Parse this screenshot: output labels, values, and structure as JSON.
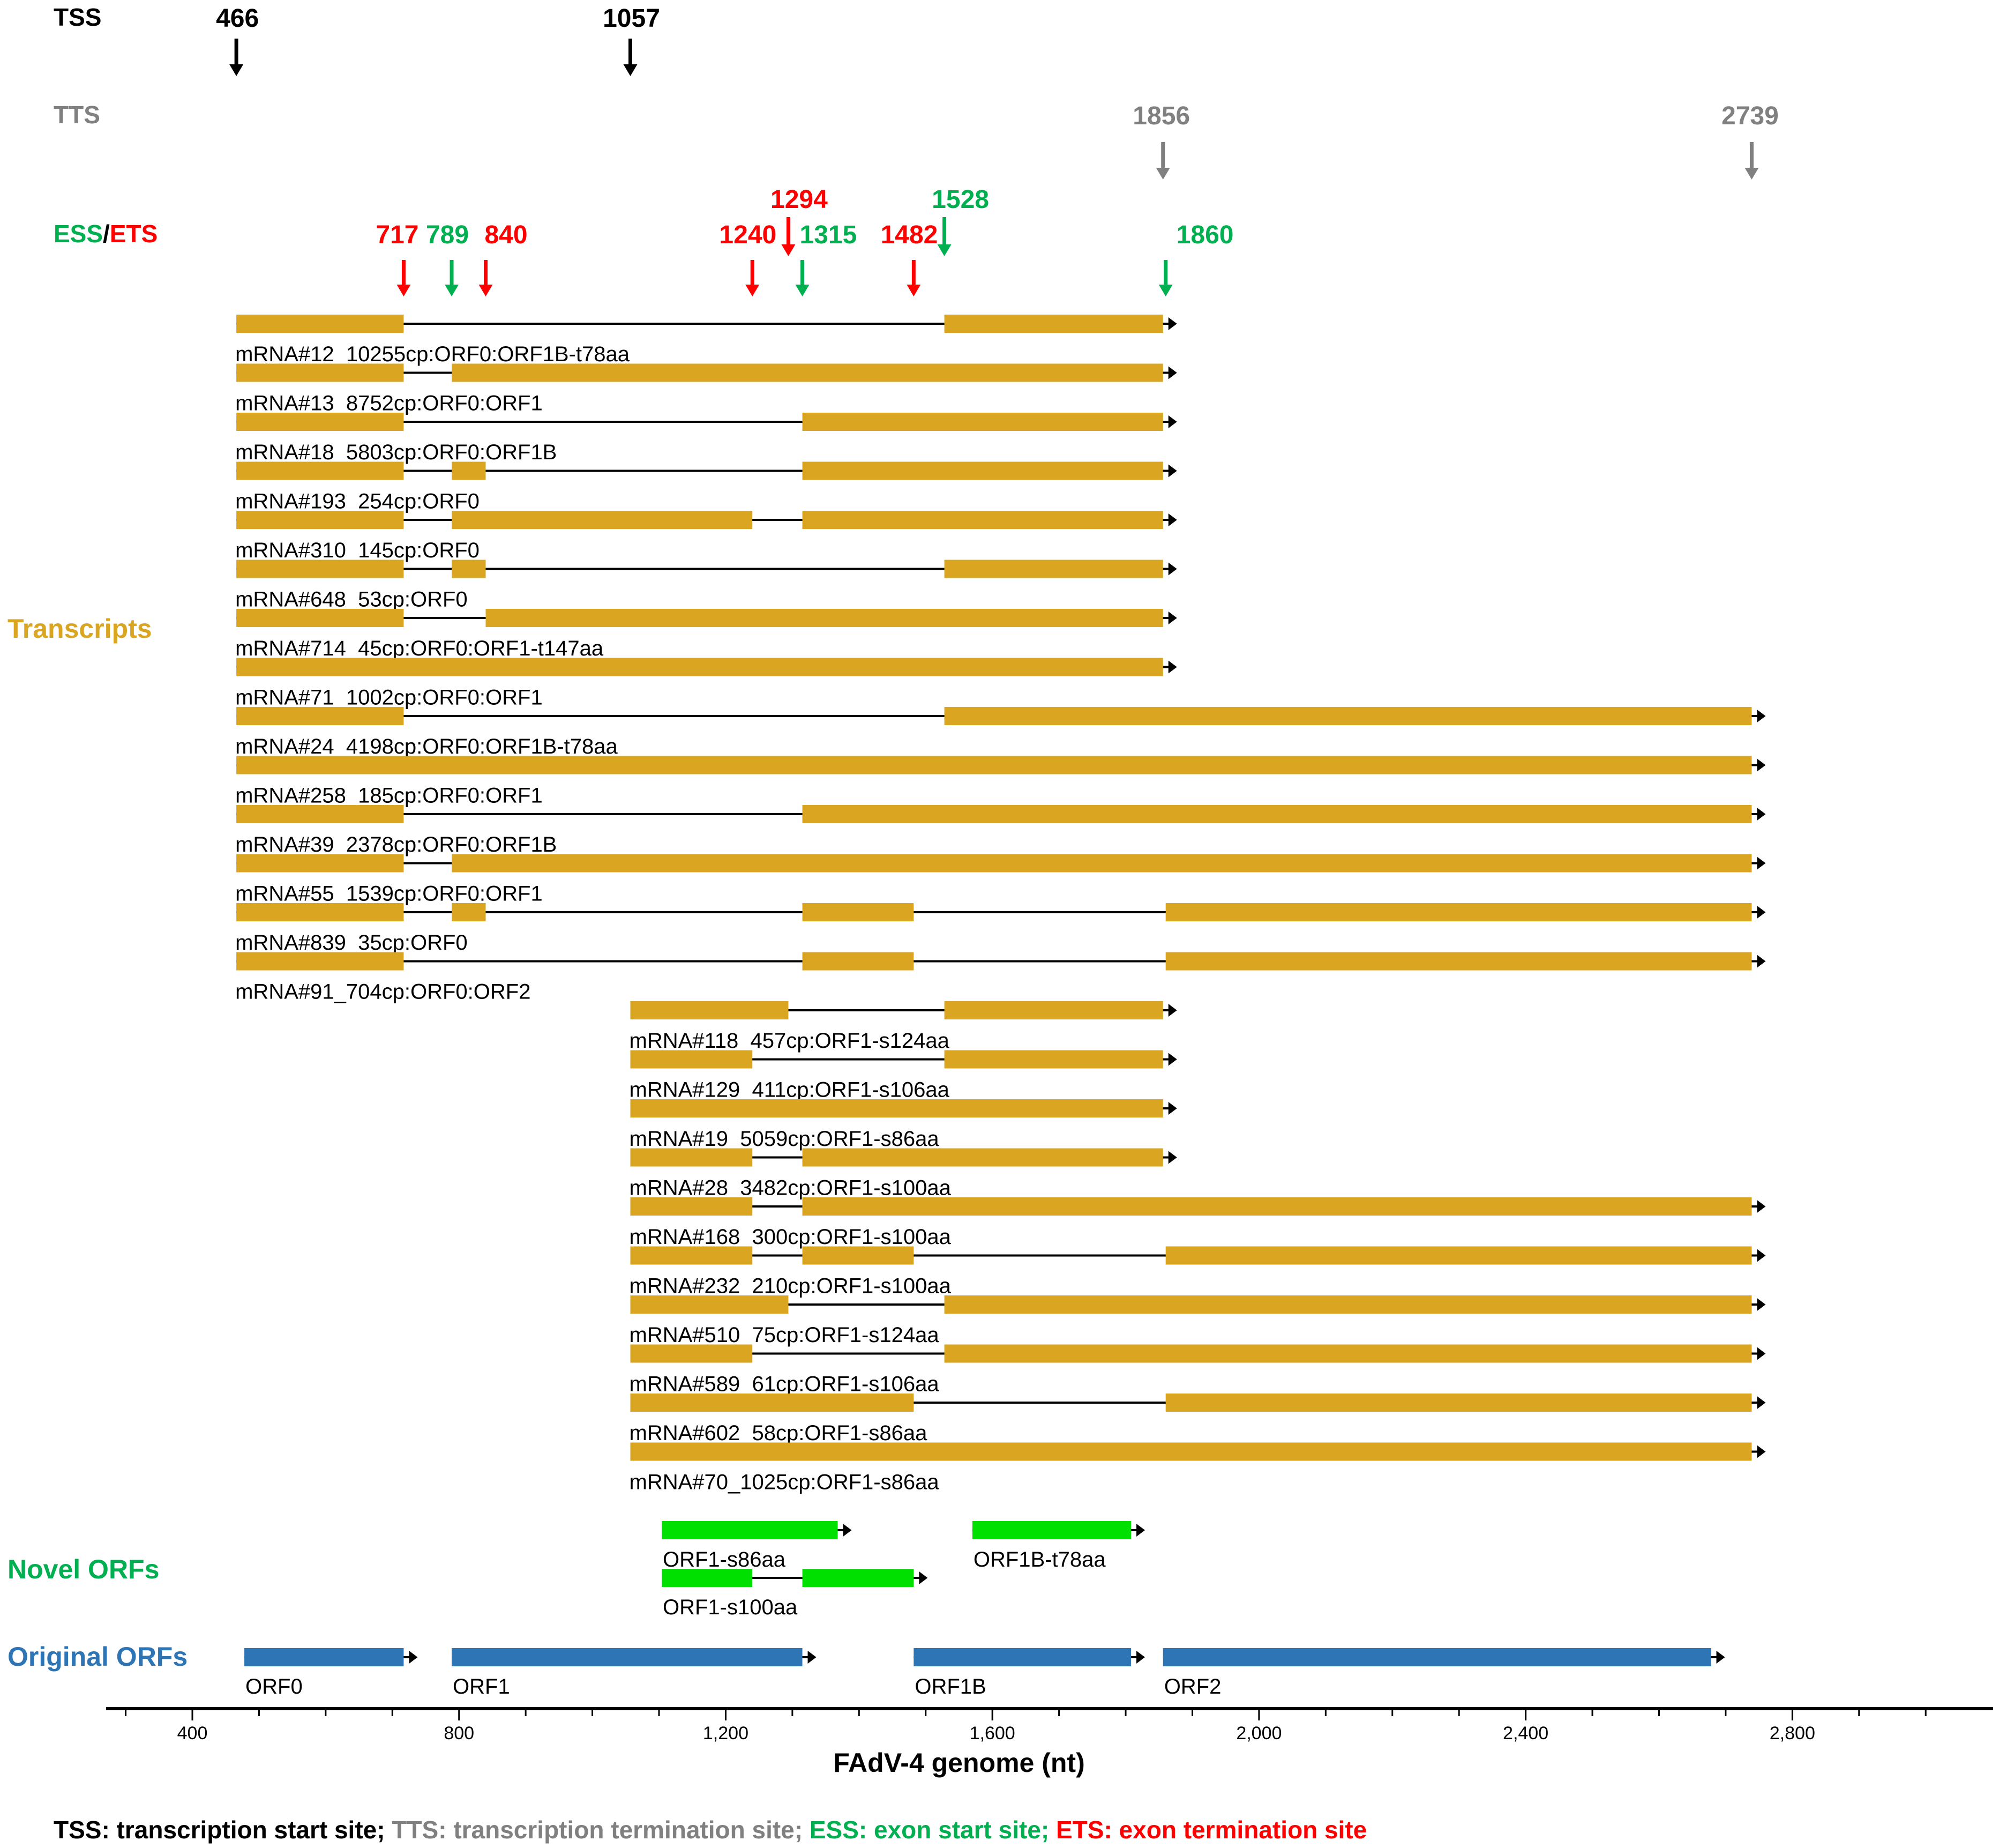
{
  "colors": {
    "tss": "#000000",
    "tts": "#808080",
    "ess": "#00b050",
    "ets": "#ff0000",
    "transcript": "#daa520",
    "novel": "#00e000",
    "original": "#2e75b6",
    "line": "#000000"
  },
  "labels": {
    "tss": "TSS",
    "tts": "TTS",
    "ess": "ESS",
    "slash": "/",
    "ets": "ETS",
    "transcripts": "Transcripts",
    "novel_orfs": "Novel ORFs",
    "original_orfs": "Original ORFs"
  },
  "tss_sites": [
    466,
    1057
  ],
  "tts_sites": [
    1856,
    2739
  ],
  "splice_sites": [
    {
      "pos": 717,
      "type": "ETS",
      "label": "717"
    },
    {
      "pos": 789,
      "type": "ESS",
      "label": "789"
    },
    {
      "pos": 840,
      "type": "ETS",
      "label": "840"
    },
    {
      "pos": 1240,
      "type": "ETS",
      "label": "1240"
    },
    {
      "pos": 1294,
      "type": "ETS",
      "label": "1294"
    },
    {
      "pos": 1315,
      "type": "ESS",
      "label": "1315"
    },
    {
      "pos": 1482,
      "type": "ETS",
      "label": "1482"
    },
    {
      "pos": 1528,
      "type": "ESS",
      "label": "1528"
    },
    {
      "pos": 1860,
      "type": "ESS",
      "label": "1860"
    }
  ],
  "transcripts": [
    {
      "name": "mRNA#12_10255cp:ORF0:ORF1B-t78aa",
      "exons": [
        [
          466,
          717
        ],
        [
          1528,
          1856
        ]
      ],
      "end": 1856
    },
    {
      "name": "mRNA#13_8752cp:ORF0:ORF1",
      "exons": [
        [
          466,
          717
        ],
        [
          789,
          1856
        ]
      ],
      "end": 1856
    },
    {
      "name": "mRNA#18_5803cp:ORF0:ORF1B",
      "exons": [
        [
          466,
          717
        ],
        [
          1315,
          1856
        ]
      ],
      "end": 1856
    },
    {
      "name": "mRNA#193_254cp:ORF0",
      "exons": [
        [
          466,
          717
        ],
        [
          789,
          840
        ],
        [
          1315,
          1856
        ]
      ],
      "end": 1856
    },
    {
      "name": "mRNA#310_145cp:ORF0",
      "exons": [
        [
          466,
          717
        ],
        [
          789,
          1240
        ],
        [
          1315,
          1856
        ]
      ],
      "end": 1856
    },
    {
      "name": "mRNA#648_53cp:ORF0",
      "exons": [
        [
          466,
          717
        ],
        [
          789,
          840
        ],
        [
          1528,
          1856
        ]
      ],
      "end": 1856
    },
    {
      "name": "mRNA#714_45cp:ORF0:ORF1-t147aa",
      "exons": [
        [
          466,
          717
        ],
        [
          840,
          1856
        ]
      ],
      "end": 1856
    },
    {
      "name": "mRNA#71_1002cp:ORF0:ORF1",
      "exons": [
        [
          466,
          1856
        ]
      ],
      "end": 1856
    },
    {
      "name": "mRNA#24_4198cp:ORF0:ORF1B-t78aa",
      "exons": [
        [
          466,
          717
        ],
        [
          1528,
          2739
        ]
      ],
      "end": 2739
    },
    {
      "name": "mRNA#258_185cp:ORF0:ORF1",
      "exons": [
        [
          466,
          2739
        ]
      ],
      "end": 2739
    },
    {
      "name": "mRNA#39_2378cp:ORF0:ORF1B",
      "exons": [
        [
          466,
          717
        ],
        [
          1315,
          2739
        ]
      ],
      "end": 2739
    },
    {
      "name": "mRNA#55_1539cp:ORF0:ORF1",
      "exons": [
        [
          466,
          717
        ],
        [
          789,
          2739
        ]
      ],
      "end": 2739
    },
    {
      "name": "mRNA#839_35cp:ORF0",
      "exons": [
        [
          466,
          717
        ],
        [
          789,
          840
        ],
        [
          1315,
          1482
        ],
        [
          1860,
          2739
        ]
      ],
      "end": 2739
    },
    {
      "name": "mRNA#91_704cp:ORF0:ORF2",
      "exons": [
        [
          466,
          717
        ],
        [
          1315,
          1482
        ],
        [
          1860,
          2739
        ]
      ],
      "end": 2739
    },
    {
      "name": "mRNA#118_457cp:ORF1-s124aa",
      "exons": [
        [
          1057,
          1294
        ],
        [
          1528,
          1856
        ]
      ],
      "end": 1856
    },
    {
      "name": "mRNA#129_411cp:ORF1-s106aa",
      "exons": [
        [
          1057,
          1240
        ],
        [
          1528,
          1856
        ]
      ],
      "end": 1856
    },
    {
      "name": "mRNA#19_5059cp:ORF1-s86aa",
      "exons": [
        [
          1057,
          1856
        ]
      ],
      "end": 1856
    },
    {
      "name": "mRNA#28_3482cp:ORF1-s100aa",
      "exons": [
        [
          1057,
          1240
        ],
        [
          1315,
          1856
        ]
      ],
      "end": 1856
    },
    {
      "name": "mRNA#168_300cp:ORF1-s100aa",
      "exons": [
        [
          1057,
          1240
        ],
        [
          1315,
          2739
        ]
      ],
      "end": 2739
    },
    {
      "name": "mRNA#232_210cp:ORF1-s100aa",
      "exons": [
        [
          1057,
          1240
        ],
        [
          1315,
          1482
        ],
        [
          1860,
          2739
        ]
      ],
      "end": 2739
    },
    {
      "name": "mRNA#510_75cp:ORF1-s124aa",
      "exons": [
        [
          1057,
          1294
        ],
        [
          1528,
          2739
        ]
      ],
      "end": 2739
    },
    {
      "name": "mRNA#589_61cp:ORF1-s106aa",
      "exons": [
        [
          1057,
          1240
        ],
        [
          1528,
          2739
        ]
      ],
      "end": 2739
    },
    {
      "name": "mRNA#602_58cp:ORF1-s86aa",
      "exons": [
        [
          1057,
          1482
        ],
        [
          1860,
          2739
        ]
      ],
      "end": 2739
    },
    {
      "name": "mRNA#70_1025cp:ORF1-s86aa",
      "exons": [
        [
          1057,
          2739
        ]
      ],
      "end": 2739
    }
  ],
  "novel_orfs": [
    {
      "name": "ORF1-s86aa",
      "exons": [
        [
          1104,
          1368
        ]
      ],
      "end": 1368
    },
    {
      "name": "ORF1B-t78aa",
      "exons": [
        [
          1570,
          1808
        ]
      ],
      "end": 1808
    },
    {
      "name": "ORF1-s100aa",
      "exons": [
        [
          1104,
          1240
        ],
        [
          1315,
          1482
        ]
      ],
      "end": 1482
    }
  ],
  "original_orfs": [
    {
      "name": "ORF0",
      "exons": [
        [
          478,
          717
        ]
      ],
      "end": 717
    },
    {
      "name": "ORF1",
      "exons": [
        [
          789,
          1315
        ]
      ],
      "end": 1315
    },
    {
      "name": "ORF1B",
      "exons": [
        [
          1482,
          1808
        ]
      ],
      "end": 1808
    },
    {
      "name": "ORF2",
      "exons": [
        [
          1856,
          2678
        ]
      ],
      "end": 2678
    }
  ],
  "axis": {
    "ticks": [
      400,
      800,
      1200,
      1600,
      2000,
      2400,
      2800
    ],
    "tick_labels": [
      "400",
      "800",
      "1,200",
      "1,600",
      "2,000",
      "2,400",
      "2,800"
    ],
    "title": "FAdV-4 genome (nt)",
    "range": [
      280,
      3000
    ]
  },
  "footer": {
    "tss": "TSS: transcription start site;",
    "tts": " TTS: transcription termination site;",
    "ess": " ESS: exon start site;",
    "ets": " ETS:  exon termination site"
  }
}
